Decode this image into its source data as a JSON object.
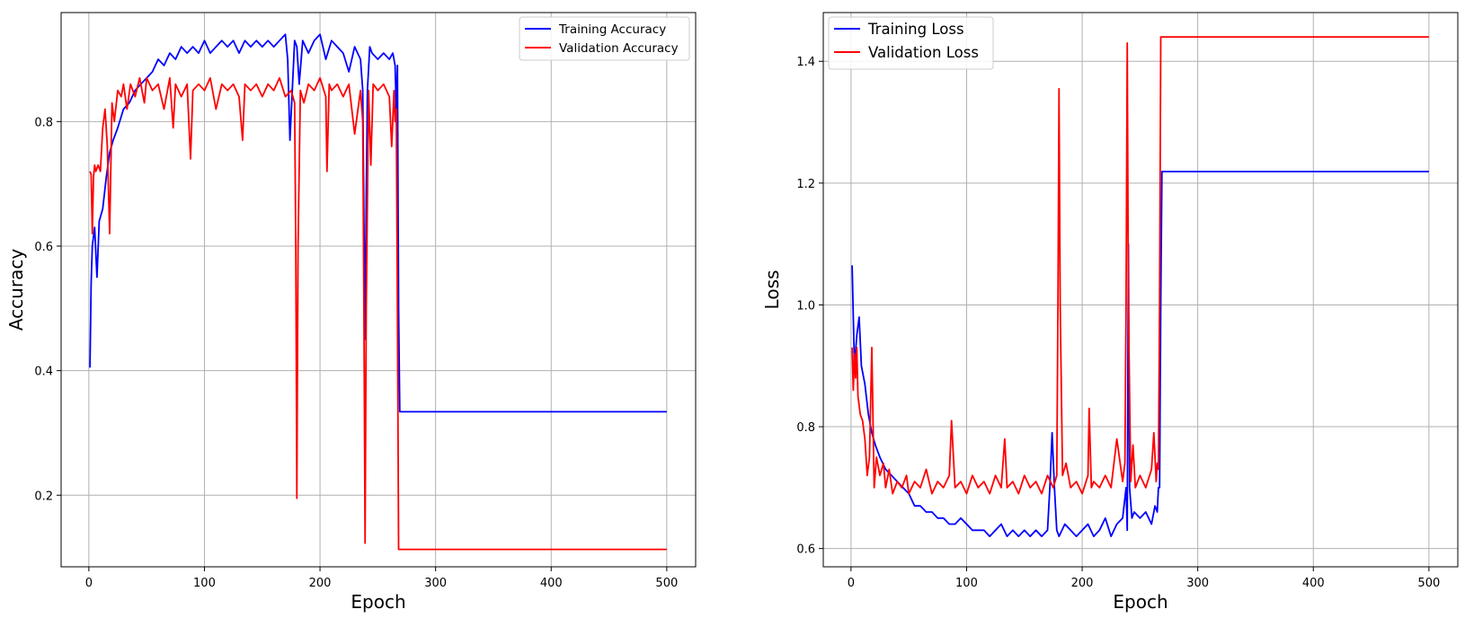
{
  "chart_data": [
    {
      "type": "line",
      "xlabel": "Epoch",
      "ylabel": "Accuracy",
      "xlim": [
        -24,
        525
      ],
      "ylim": [
        0.085,
        0.975
      ],
      "xticks": [
        0,
        100,
        200,
        300,
        400,
        500
      ],
      "yticks": [
        0.2,
        0.4,
        0.6,
        0.8
      ],
      "xtick_labels": [
        "0",
        "100",
        "200",
        "300",
        "400",
        "500"
      ],
      "ytick_labels": [
        "0.2",
        "0.4",
        "0.6",
        "0.8"
      ],
      "grid": true,
      "legend_position": "top-right",
      "series": [
        {
          "name": "Training Accuracy",
          "color": "#0000ff",
          "x": [
            1,
            2,
            3,
            5,
            7,
            9,
            12,
            15,
            18,
            21,
            25,
            30,
            35,
            40,
            45,
            50,
            55,
            60,
            65,
            70,
            75,
            80,
            85,
            90,
            95,
            100,
            105,
            110,
            115,
            120,
            125,
            130,
            135,
            140,
            145,
            150,
            155,
            160,
            165,
            170,
            172,
            174,
            176,
            178,
            180,
            182,
            185,
            190,
            195,
            200,
            205,
            210,
            215,
            220,
            225,
            230,
            235,
            237,
            239,
            240,
            241,
            243,
            245,
            250,
            255,
            260,
            263,
            265,
            266,
            267,
            268,
            269,
            270,
            300,
            350,
            400,
            450,
            500
          ],
          "y": [
            0.405,
            0.54,
            0.6,
            0.63,
            0.55,
            0.64,
            0.66,
            0.71,
            0.75,
            0.77,
            0.79,
            0.82,
            0.83,
            0.85,
            0.86,
            0.87,
            0.88,
            0.9,
            0.89,
            0.91,
            0.9,
            0.92,
            0.91,
            0.92,
            0.91,
            0.93,
            0.91,
            0.92,
            0.93,
            0.92,
            0.93,
            0.91,
            0.93,
            0.92,
            0.93,
            0.92,
            0.93,
            0.92,
            0.93,
            0.94,
            0.9,
            0.77,
            0.85,
            0.93,
            0.92,
            0.86,
            0.93,
            0.91,
            0.93,
            0.94,
            0.9,
            0.93,
            0.92,
            0.91,
            0.88,
            0.92,
            0.9,
            0.85,
            0.45,
            0.68,
            0.85,
            0.92,
            0.91,
            0.9,
            0.91,
            0.9,
            0.91,
            0.89,
            0.82,
            0.89,
            0.5,
            0.334,
            0.334,
            0.334,
            0.334,
            0.334,
            0.334,
            0.334
          ]
        },
        {
          "name": "Validation Accuracy",
          "color": "#ff0000",
          "x": [
            1,
            2,
            3,
            4,
            5,
            6,
            8,
            10,
            12,
            14,
            16,
            18,
            20,
            22,
            25,
            28,
            30,
            33,
            36,
            40,
            44,
            48,
            50,
            55,
            60,
            65,
            70,
            73,
            75,
            80,
            85,
            88,
            90,
            95,
            100,
            105,
            110,
            115,
            120,
            125,
            130,
            133,
            135,
            140,
            145,
            150,
            155,
            160,
            165,
            170,
            175,
            178,
            179,
            180,
            181,
            183,
            186,
            190,
            195,
            200,
            205,
            206,
            208,
            210,
            215,
            220,
            225,
            230,
            235,
            237,
            238,
            239,
            240,
            242,
            244,
            246,
            250,
            255,
            260,
            262,
            264,
            265,
            266,
            267,
            268,
            300,
            350,
            400,
            450,
            500
          ],
          "y": [
            0.72,
            0.715,
            0.62,
            0.71,
            0.73,
            0.72,
            0.73,
            0.72,
            0.79,
            0.82,
            0.76,
            0.62,
            0.83,
            0.8,
            0.85,
            0.84,
            0.86,
            0.82,
            0.86,
            0.84,
            0.87,
            0.83,
            0.87,
            0.85,
            0.86,
            0.82,
            0.87,
            0.79,
            0.86,
            0.84,
            0.86,
            0.74,
            0.85,
            0.86,
            0.85,
            0.87,
            0.82,
            0.86,
            0.85,
            0.86,
            0.84,
            0.77,
            0.86,
            0.85,
            0.86,
            0.84,
            0.86,
            0.85,
            0.87,
            0.84,
            0.85,
            0.83,
            0.6,
            0.195,
            0.6,
            0.85,
            0.83,
            0.86,
            0.85,
            0.87,
            0.84,
            0.72,
            0.86,
            0.85,
            0.86,
            0.84,
            0.86,
            0.78,
            0.85,
            0.8,
            0.5,
            0.123,
            0.5,
            0.85,
            0.73,
            0.86,
            0.85,
            0.86,
            0.84,
            0.76,
            0.85,
            0.8,
            0.82,
            0.5,
            0.113,
            0.113,
            0.113,
            0.113,
            0.113,
            0.113
          ]
        }
      ]
    },
    {
      "type": "line",
      "xlabel": "Epoch",
      "ylabel": "Loss",
      "xlim": [
        -24,
        525
      ],
      "ylim": [
        0.57,
        1.48
      ],
      "xticks": [
        0,
        100,
        200,
        300,
        400,
        500
      ],
      "yticks": [
        0.6,
        0.8,
        1.0,
        1.2,
        1.4
      ],
      "xtick_labels": [
        "0",
        "100",
        "200",
        "300",
        "400",
        "500"
      ],
      "ytick_labels": [
        "0.6",
        "0.8",
        "1.0",
        "1.2",
        "1.4"
      ],
      "grid": true,
      "legend_position": "top-left",
      "series": [
        {
          "name": "Training Loss",
          "color": "#0000ff",
          "x": [
            1,
            2,
            3,
            5,
            7,
            9,
            12,
            15,
            18,
            21,
            25,
            30,
            35,
            40,
            45,
            50,
            55,
            60,
            65,
            70,
            75,
            80,
            85,
            90,
            95,
            100,
            105,
            110,
            115,
            120,
            125,
            130,
            135,
            140,
            145,
            150,
            155,
            160,
            165,
            170,
            172,
            174,
            176,
            178,
            180,
            185,
            190,
            195,
            200,
            205,
            210,
            215,
            220,
            225,
            230,
            235,
            238,
            239,
            240,
            241,
            243,
            245,
            250,
            255,
            260,
            263,
            265,
            266,
            267,
            268,
            269,
            270,
            300,
            350,
            400,
            450,
            500
          ],
          "y": [
            1.065,
            0.98,
            0.9,
            0.95,
            0.98,
            0.9,
            0.87,
            0.82,
            0.79,
            0.77,
            0.75,
            0.73,
            0.72,
            0.71,
            0.7,
            0.69,
            0.67,
            0.67,
            0.66,
            0.66,
            0.65,
            0.65,
            0.64,
            0.64,
            0.65,
            0.64,
            0.63,
            0.63,
            0.63,
            0.62,
            0.63,
            0.64,
            0.62,
            0.63,
            0.62,
            0.63,
            0.62,
            0.63,
            0.62,
            0.63,
            0.7,
            0.79,
            0.7,
            0.63,
            0.62,
            0.64,
            0.63,
            0.62,
            0.63,
            0.64,
            0.62,
            0.63,
            0.65,
            0.62,
            0.64,
            0.65,
            0.7,
            0.63,
            1.1,
            0.7,
            0.65,
            0.66,
            0.65,
            0.66,
            0.64,
            0.67,
            0.66,
            0.7,
            0.7,
            1.0,
            1.219,
            1.219,
            1.219,
            1.219,
            1.219,
            1.219,
            1.219
          ]
        },
        {
          "name": "Validation Loss",
          "color": "#ff0000",
          "x": [
            1,
            2,
            3,
            4,
            5,
            6,
            8,
            10,
            12,
            14,
            16,
            18,
            20,
            22,
            25,
            28,
            30,
            33,
            36,
            40,
            44,
            48,
            50,
            55,
            60,
            65,
            70,
            75,
            80,
            85,
            87,
            90,
            95,
            100,
            105,
            110,
            115,
            120,
            125,
            130,
            133,
            135,
            140,
            145,
            150,
            155,
            160,
            165,
            170,
            175,
            178,
            179,
            180,
            181,
            183,
            186,
            190,
            195,
            200,
            205,
            206,
            208,
            210,
            215,
            220,
            225,
            230,
            235,
            237,
            238,
            239,
            240,
            242,
            244,
            246,
            250,
            255,
            260,
            262,
            264,
            265,
            266,
            267,
            268,
            300,
            350,
            400,
            450,
            500
          ],
          "y": [
            0.93,
            0.86,
            0.92,
            0.88,
            0.93,
            0.85,
            0.82,
            0.81,
            0.78,
            0.72,
            0.75,
            0.93,
            0.7,
            0.75,
            0.72,
            0.74,
            0.7,
            0.73,
            0.69,
            0.71,
            0.7,
            0.72,
            0.69,
            0.71,
            0.7,
            0.73,
            0.69,
            0.71,
            0.7,
            0.72,
            0.81,
            0.7,
            0.71,
            0.69,
            0.72,
            0.7,
            0.71,
            0.69,
            0.72,
            0.7,
            0.78,
            0.7,
            0.71,
            0.69,
            0.72,
            0.7,
            0.71,
            0.69,
            0.72,
            0.7,
            0.72,
            1.0,
            1.355,
            1.0,
            0.72,
            0.74,
            0.7,
            0.71,
            0.69,
            0.72,
            0.83,
            0.7,
            0.71,
            0.7,
            0.72,
            0.7,
            0.78,
            0.71,
            0.74,
            1.0,
            1.43,
            1.0,
            0.71,
            0.77,
            0.7,
            0.72,
            0.7,
            0.73,
            0.79,
            0.71,
            0.74,
            0.73,
            1.0,
            1.44,
            1.44,
            1.44,
            1.44,
            1.44,
            1.44
          ]
        }
      ]
    }
  ]
}
